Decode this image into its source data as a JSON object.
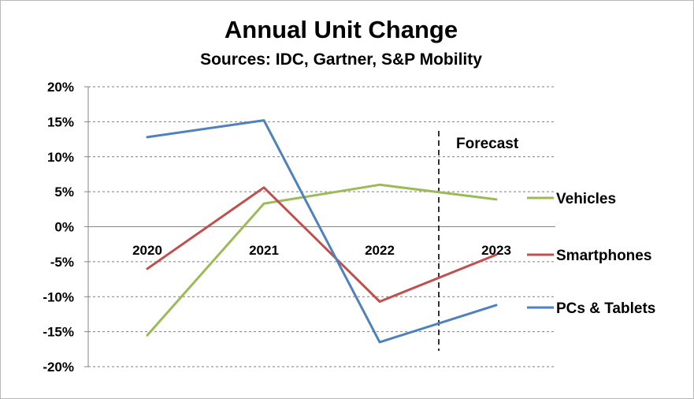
{
  "chart_data": {
    "type": "line",
    "title": "Annual Unit Change",
    "subtitle": "Sources: IDC, Gartner, S&P Mobility",
    "categories": [
      "2020",
      "2021",
      "2022",
      "2023"
    ],
    "ylim": [
      -20,
      20
    ],
    "yticks": [
      20,
      15,
      10,
      5,
      0,
      -5,
      -10,
      -15,
      -20
    ],
    "ytick_labels": [
      "20%",
      "15%",
      "10%",
      "5%",
      "0%",
      "-5%",
      "-10%",
      "-15%",
      "-20%"
    ],
    "grid": "horizontal dashed",
    "legend_placement": "right",
    "annotation": {
      "text": "Forecast",
      "divider_between": [
        "2022",
        "2023"
      ]
    },
    "series": [
      {
        "name": "Vehicles",
        "color": "#9bbb59",
        "values": [
          -15.5,
          3.3,
          6.0,
          3.9
        ]
      },
      {
        "name": "Smartphones",
        "color": "#c0504d",
        "values": [
          -6.0,
          5.6,
          -10.7,
          -4.0
        ]
      },
      {
        "name": "PCs & Tablets",
        "color": "#4f81bd",
        "values": [
          12.8,
          15.2,
          -16.5,
          -11.2
        ]
      }
    ]
  }
}
